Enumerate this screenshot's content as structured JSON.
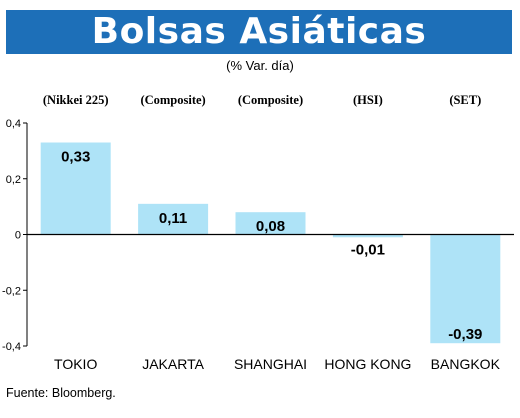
{
  "title": "Bolsas Asiáticas",
  "subtitle": "(% Var. día)",
  "source": "Fuente: Bloomberg.",
  "colors": {
    "title_bg": "#1d6fb8",
    "bar": "#aee3f7",
    "axis": "#000000"
  },
  "chart_data": {
    "type": "bar",
    "categories": [
      "TOKIO",
      "JAKARTA",
      "SHANGHAI",
      "HONG KONG",
      "BANGKOK"
    ],
    "index_labels": [
      "(Nikkei 225)",
      "(Composite)",
      "(Composite)",
      "(HSI)",
      "(SET)"
    ],
    "values": [
      0.33,
      0.11,
      0.08,
      -0.01,
      -0.39
    ],
    "data_labels": [
      "0,33",
      "0,11",
      "0,08",
      "-0,01",
      "-0,39"
    ],
    "ylim": [
      -0.4,
      0.4
    ],
    "yticks": [
      0.4,
      0.2,
      0,
      -0.2,
      -0.4
    ],
    "ytick_labels": [
      "0,4",
      "0,2",
      "0",
      "-0,2",
      "-0,4"
    ],
    "grid": false,
    "legend": "none"
  }
}
